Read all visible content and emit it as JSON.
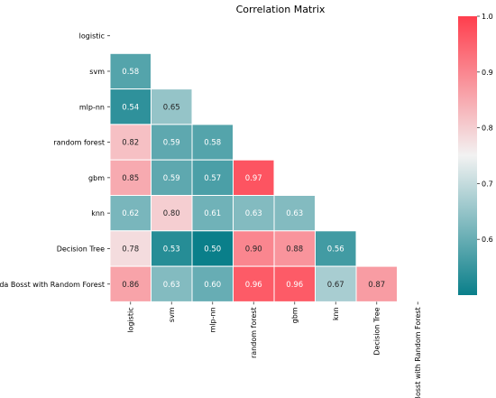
{
  "chart_data": {
    "type": "heatmap",
    "title": "Correlation Matrix",
    "row_labels": [
      "logistic",
      "svm",
      "mlp-nn",
      "random forest",
      "gbm",
      "knn",
      "Decision Tree",
      "Ada Bosst with Random Forest"
    ],
    "col_labels": [
      "logistic",
      "svm",
      "mlp-nn",
      "random forest",
      "gbm",
      "knn",
      "Decision Tree",
      "Ada Bosst with Random Forest"
    ],
    "mask": "upper-triangle-including-diagonal",
    "values": [
      [
        null,
        null,
        null,
        null,
        null,
        null,
        null,
        null
      ],
      [
        0.58,
        null,
        null,
        null,
        null,
        null,
        null,
        null
      ],
      [
        0.54,
        0.65,
        null,
        null,
        null,
        null,
        null,
        null
      ],
      [
        0.82,
        0.59,
        0.58,
        null,
        null,
        null,
        null,
        null
      ],
      [
        0.85,
        0.59,
        0.57,
        0.97,
        null,
        null,
        null,
        null
      ],
      [
        0.62,
        0.8,
        0.61,
        0.63,
        0.63,
        null,
        null,
        null
      ],
      [
        0.78,
        0.53,
        0.5,
        0.9,
        0.88,
        0.56,
        null,
        null
      ],
      [
        0.86,
        0.63,
        0.6,
        0.96,
        0.96,
        0.67,
        0.87,
        null
      ]
    ],
    "value_labels": [
      [
        null,
        null,
        null,
        null,
        null,
        null,
        null,
        null
      ],
      [
        "0.58",
        null,
        null,
        null,
        null,
        null,
        null,
        null
      ],
      [
        "0.54",
        "0.65",
        null,
        null,
        null,
        null,
        null,
        null
      ],
      [
        "0.82",
        "0.59",
        "0.58",
        null,
        null,
        null,
        null,
        null
      ],
      [
        "0.85",
        "0.59",
        "0.57",
        "0.97",
        null,
        null,
        null,
        null
      ],
      [
        "0.62",
        "0.80",
        "0.61",
        "0.63",
        "0.63",
        null,
        null,
        null
      ],
      [
        "0.78",
        "0.53",
        "0.50",
        "0.90",
        "0.88",
        "0.56",
        null,
        null
      ],
      [
        "0.86",
        "0.63",
        "0.60",
        "0.96",
        "0.96",
        "0.67",
        "0.87",
        null
      ]
    ],
    "colorbar": {
      "range": [
        0.5,
        1.0
      ],
      "ticks": [
        0.6,
        0.7,
        0.8,
        0.9,
        1.0
      ],
      "tick_labels": [
        "0.6",
        "0.7",
        "0.8",
        "0.9",
        "1.0"
      ],
      "colors": {
        "low": "#0a7f8a",
        "mid": "#f2f2f2",
        "high": "#ff3e4d"
      }
    },
    "grid": false,
    "legend": "colorbar-right"
  }
}
